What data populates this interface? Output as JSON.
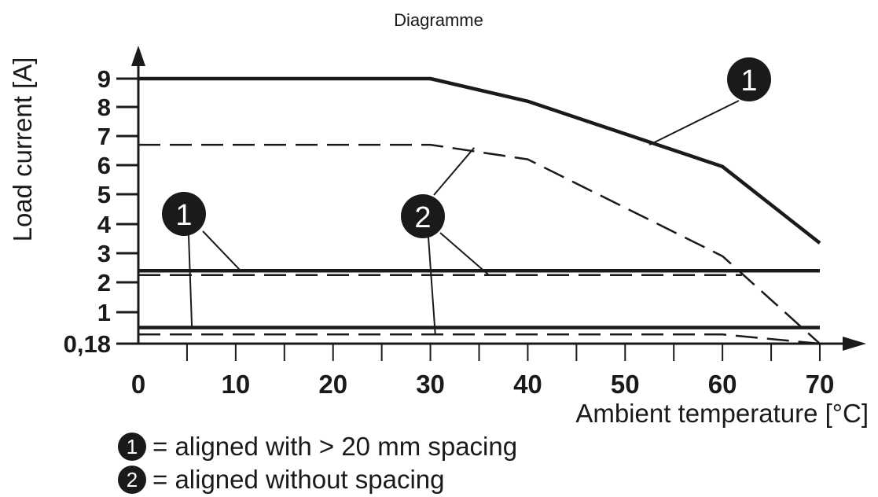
{
  "chart_data": {
    "type": "line",
    "title": "Diagramme",
    "xlabel": "Ambient temperature [°C]",
    "ylabel": "Load current [A]",
    "x_ticks": [
      "0",
      "10",
      "20",
      "30",
      "40",
      "50",
      "60",
      "70"
    ],
    "y_ticks": [
      {
        "value": 0.18,
        "label": "0,18"
      },
      {
        "value": 1,
        "label": "1"
      },
      {
        "value": 2,
        "label": "2"
      },
      {
        "value": 3,
        "label": "3"
      },
      {
        "value": 4,
        "label": "4"
      },
      {
        "value": 5,
        "label": "5"
      },
      {
        "value": 6,
        "label": "6"
      },
      {
        "value": 7,
        "label": "7"
      },
      {
        "value": 8,
        "label": "8"
      },
      {
        "value": 9,
        "label": "9"
      }
    ],
    "xlim": [
      0,
      70
    ],
    "ylim": [
      0.18,
      9
    ],
    "grid": false,
    "series": [
      {
        "marker": "1",
        "style": "solid",
        "x": [
          0,
          30,
          40,
          60,
          70
        ],
        "y": [
          9.0,
          9.0,
          8.2,
          5.95,
          3.35
        ]
      },
      {
        "marker": "2",
        "style": "dashed",
        "x": [
          0,
          30,
          40,
          60,
          70
        ],
        "y": [
          6.7,
          6.7,
          6.2,
          2.9,
          0.18
        ]
      },
      {
        "marker": "1",
        "style": "solid",
        "x": [
          0,
          70
        ],
        "y": [
          2.4,
          2.4
        ]
      },
      {
        "marker": "2",
        "style": "dashed",
        "x": [
          0,
          62
        ],
        "y": [
          2.25,
          2.25
        ]
      },
      {
        "marker": "1",
        "style": "solid",
        "x": [
          0,
          70
        ],
        "y": [
          0.6,
          0.6
        ]
      },
      {
        "marker": "2",
        "style": "dashed",
        "x": [
          0,
          60,
          70
        ],
        "y": [
          0.42,
          0.42,
          0.18
        ]
      }
    ],
    "annotations": [
      {
        "label": "1",
        "target": "upper solid curve"
      },
      {
        "label": "2",
        "target": "upper dashed curve and lower dashed line"
      },
      {
        "label": "1",
        "target": "lower solid lines"
      }
    ]
  },
  "legend": {
    "items": [
      {
        "marker": "1",
        "text": "= aligned with > 20 mm spacing"
      },
      {
        "marker": "2",
        "text": "= aligned without spacing"
      }
    ]
  },
  "colors": {
    "ink": "#1a1a1a",
    "background": "#ffffff"
  }
}
